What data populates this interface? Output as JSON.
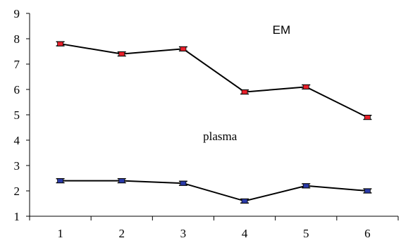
{
  "chart_data": {
    "type": "line",
    "title": "",
    "xlabel": "",
    "ylabel": "",
    "x": [
      "1",
      "2",
      "3",
      "4",
      "5",
      "6"
    ],
    "ylim": [
      1,
      9
    ],
    "yticks": [
      "1",
      "2",
      "3",
      "4",
      "5",
      "6",
      "7",
      "8",
      "9"
    ],
    "grid": false,
    "legend": "none",
    "series": [
      {
        "values": [
          7.8,
          7.4,
          7.6,
          5.9,
          6.1,
          4.9
        ],
        "errors": [
          0.08,
          0.08,
          0.08,
          0.08,
          0.08,
          0.08
        ],
        "marker_color": "#e8202a"
      },
      {
        "values": [
          2.4,
          2.4,
          2.3,
          1.6,
          2.2,
          2.0
        ],
        "errors": [
          0.08,
          0.08,
          0.08,
          0.08,
          0.08,
          0.08
        ],
        "marker_color": "#2a3aa8"
      }
    ],
    "annotations": [
      {
        "text": "EM",
        "x": 4.6,
        "y": 8.2,
        "style": "sans"
      },
      {
        "text": "plasma",
        "x": 3.6,
        "y": 4.0,
        "style": "serif"
      }
    ]
  }
}
